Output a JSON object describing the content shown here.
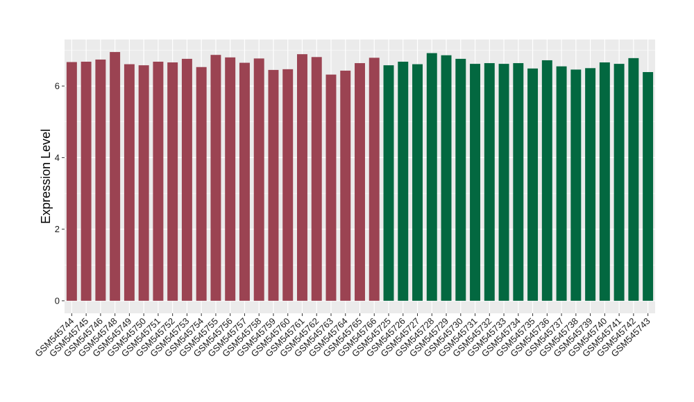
{
  "chart_data": {
    "type": "bar",
    "title": "",
    "xlabel": "",
    "ylabel": "Expression Level",
    "ylim": [
      -0.35,
      7.3
    ],
    "yticks": [
      0,
      2,
      4,
      6
    ],
    "grid": true,
    "legend": "none",
    "colors": {
      "group1": "#9B4352",
      "group2": "#036840",
      "panel": "#EBEBEB",
      "grid": "#FFFFFF"
    },
    "categories": [
      "GSM545744",
      "GSM545745",
      "GSM545746",
      "GSM545748",
      "GSM545749",
      "GSM545750",
      "GSM545751",
      "GSM545752",
      "GSM545753",
      "GSM545754",
      "GSM545755",
      "GSM545756",
      "GSM545757",
      "GSM545758",
      "GSM545759",
      "GSM545760",
      "GSM545761",
      "GSM545762",
      "GSM545763",
      "GSM545764",
      "GSM545765",
      "GSM545766",
      "GSM545725",
      "GSM545726",
      "GSM545727",
      "GSM545728",
      "GSM545729",
      "GSM545730",
      "GSM545731",
      "GSM545732",
      "GSM545733",
      "GSM545734",
      "GSM545735",
      "GSM545736",
      "GSM545737",
      "GSM545738",
      "GSM545739",
      "GSM545740",
      "GSM545741",
      "GSM545742",
      "GSM545743"
    ],
    "values": [
      6.67,
      6.68,
      6.74,
      6.95,
      6.61,
      6.58,
      6.68,
      6.66,
      6.76,
      6.53,
      6.87,
      6.8,
      6.65,
      6.77,
      6.45,
      6.47,
      6.89,
      6.81,
      6.32,
      6.43,
      6.64,
      6.79,
      6.58,
      6.68,
      6.61,
      6.92,
      6.86,
      6.76,
      6.62,
      6.64,
      6.62,
      6.64,
      6.49,
      6.72,
      6.55,
      6.46,
      6.5,
      6.66,
      6.62,
      6.78,
      6.39
    ],
    "groups": [
      1,
      1,
      1,
      1,
      1,
      1,
      1,
      1,
      1,
      1,
      1,
      1,
      1,
      1,
      1,
      1,
      1,
      1,
      1,
      1,
      1,
      1,
      2,
      2,
      2,
      2,
      2,
      2,
      2,
      2,
      2,
      2,
      2,
      2,
      2,
      2,
      2,
      2,
      2,
      2,
      2
    ]
  }
}
